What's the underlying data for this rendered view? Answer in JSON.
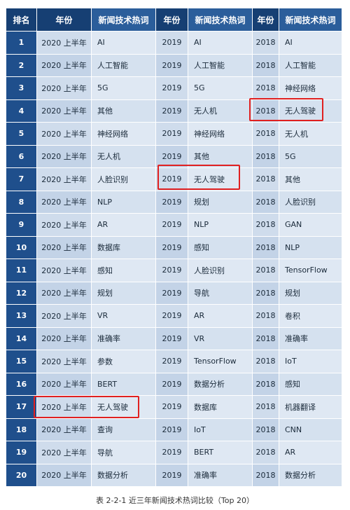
{
  "table": {
    "headers": [
      "排名",
      "年份",
      "新闻技术热词",
      "年份",
      "新闻技术热词",
      "年份",
      "新闻技术热词"
    ],
    "rows": [
      {
        "rank": "1",
        "y2020": "2020 上半年",
        "w2020": "AI",
        "y2019": "2019",
        "w2019": "AI",
        "y2018": "2018",
        "w2018": "AI"
      },
      {
        "rank": "2",
        "y2020": "2020 上半年",
        "w2020": "人工智能",
        "y2019": "2019",
        "w2019": "人工智能",
        "y2018": "2018",
        "w2018": "人工智能"
      },
      {
        "rank": "3",
        "y2020": "2020 上半年",
        "w2020": "5G",
        "y2019": "2019",
        "w2019": "5G",
        "y2018": "2018",
        "w2018": "神经网络"
      },
      {
        "rank": "4",
        "y2020": "2020 上半年",
        "w2020": "其他",
        "y2019": "2019",
        "w2019": "无人机",
        "y2018": "2018",
        "w2018": "无人驾驶"
      },
      {
        "rank": "5",
        "y2020": "2020 上半年",
        "w2020": "神经网络",
        "y2019": "2019",
        "w2019": "神经网络",
        "y2018": "2018",
        "w2018": "无人机"
      },
      {
        "rank": "6",
        "y2020": "2020 上半年",
        "w2020": "无人机",
        "y2019": "2019",
        "w2019": "其他",
        "y2018": "2018",
        "w2018": "5G"
      },
      {
        "rank": "7",
        "y2020": "2020 上半年",
        "w2020": "人脸识别",
        "y2019": "2019",
        "w2019": "无人驾驶",
        "y2018": "2018",
        "w2018": "其他"
      },
      {
        "rank": "8",
        "y2020": "2020 上半年",
        "w2020": "NLP",
        "y2019": "2019",
        "w2019": "规划",
        "y2018": "2018",
        "w2018": "人脸识别"
      },
      {
        "rank": "9",
        "y2020": "2020 上半年",
        "w2020": "AR",
        "y2019": "2019",
        "w2019": "NLP",
        "y2018": "2018",
        "w2018": "GAN"
      },
      {
        "rank": "10",
        "y2020": "2020 上半年",
        "w2020": "数据库",
        "y2019": "2019",
        "w2019": "感知",
        "y2018": "2018",
        "w2018": "NLP"
      },
      {
        "rank": "11",
        "y2020": "2020 上半年",
        "w2020": "感知",
        "y2019": "2019",
        "w2019": "人脸识别",
        "y2018": "2018",
        "w2018": "TensorFlow"
      },
      {
        "rank": "12",
        "y2020": "2020 上半年",
        "w2020": "规划",
        "y2019": "2019",
        "w2019": "导航",
        "y2018": "2018",
        "w2018": "规划"
      },
      {
        "rank": "13",
        "y2020": "2020 上半年",
        "w2020": "VR",
        "y2019": "2019",
        "w2019": "AR",
        "y2018": "2018",
        "w2018": "卷积"
      },
      {
        "rank": "14",
        "y2020": "2020 上半年",
        "w2020": "准确率",
        "y2019": "2019",
        "w2019": "VR",
        "y2018": "2018",
        "w2018": "准确率"
      },
      {
        "rank": "15",
        "y2020": "2020 上半年",
        "w2020": "参数",
        "y2019": "2019",
        "w2019": "TensorFlow",
        "y2018": "2018",
        "w2018": "IoT"
      },
      {
        "rank": "16",
        "y2020": "2020 上半年",
        "w2020": "BERT",
        "y2019": "2019",
        "w2019": "数据分析",
        "y2018": "2018",
        "w2018": "感知"
      },
      {
        "rank": "17",
        "y2020": "2020 上半年",
        "w2020": "无人驾驶",
        "y2019": "2019",
        "w2019": "数据库",
        "y2018": "2018",
        "w2018": "机器翻译"
      },
      {
        "rank": "18",
        "y2020": "2020 上半年",
        "w2020": "查询",
        "y2019": "2019",
        "w2019": "IoT",
        "y2018": "2018",
        "w2018": "CNN"
      },
      {
        "rank": "19",
        "y2020": "2020 上半年",
        "w2020": "导航",
        "y2019": "2019",
        "w2019": "BERT",
        "y2018": "2018",
        "w2018": "AR"
      },
      {
        "rank": "20",
        "y2020": "2020 上半年",
        "w2020": "数据分析",
        "y2019": "2019",
        "w2019": "准确率",
        "y2018": "2018",
        "w2018": "数据分析"
      }
    ]
  },
  "caption": "表 2-2-1 近三年新闻技术热词比较（Top 20）",
  "colors": {
    "header_dark": "#163f73",
    "header_light": "#2b5e9b",
    "rank_cell": "#1f4f8c",
    "highlight": "#e02020"
  }
}
